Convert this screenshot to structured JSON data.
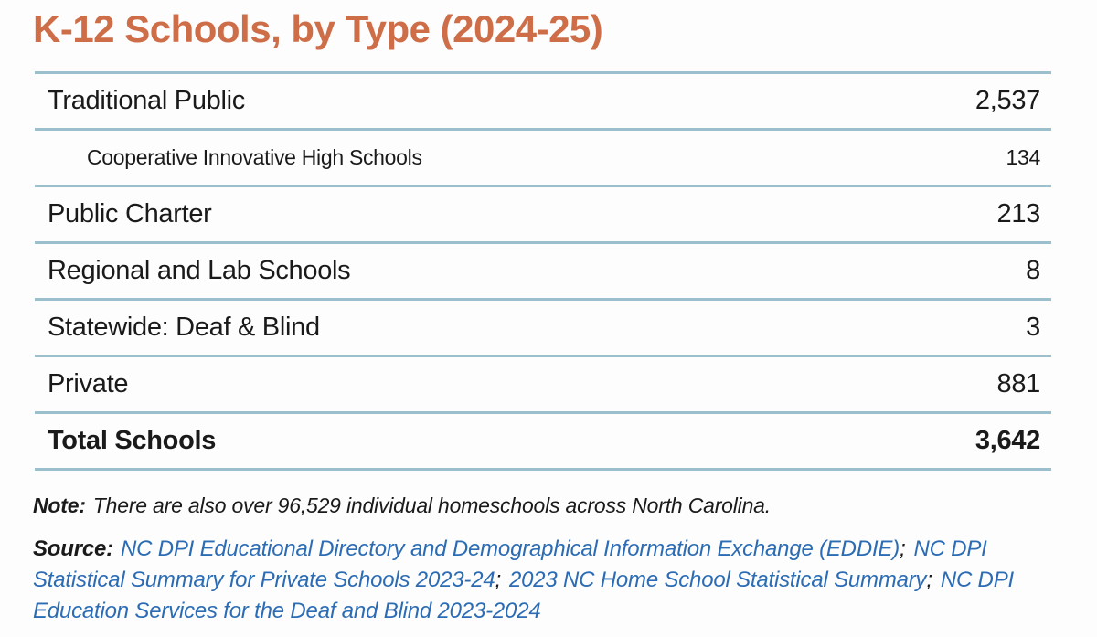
{
  "title": {
    "text": "K-12 Schools, by Type (2024-25)"
  },
  "colors": {
    "accent_orange": "#CE6E48",
    "rule_blue": "#9BBFCC",
    "link_blue": "#2B6CB4",
    "text": "#1A1A1A"
  },
  "table": {
    "rows": [
      {
        "label": "Traditional Public",
        "value": "2,537",
        "style": "main"
      },
      {
        "label": "Cooperative Innovative High Schools",
        "value": "134",
        "style": "sub"
      },
      {
        "label": "Public Charter",
        "value": "213",
        "style": "main"
      },
      {
        "label": "Regional and Lab Schools",
        "value": "8",
        "style": "main"
      },
      {
        "label": "Statewide: Deaf & Blind",
        "value": "3",
        "style": "main"
      },
      {
        "label": "Private",
        "value": "881",
        "style": "main"
      },
      {
        "label": "Total Schools",
        "value": "3,642",
        "style": "total"
      }
    ]
  },
  "note": {
    "label": "Note:",
    "text": "There are also over 96,529 individual homeschools across North Carolina."
  },
  "source": {
    "label": "Source:",
    "lines": [
      [
        "NC DPI Educational Directory and Demographical Information Exchange (EDDIE)",
        ";",
        "NC DPI"
      ],
      [
        "Statistical Summary for Private Schools 2023-24",
        ";",
        "2023 NC Home School Statistical Summary",
        ";",
        "NC DPI"
      ],
      [
        "Education Services for the Deaf and Blind 2023-2024"
      ]
    ]
  }
}
